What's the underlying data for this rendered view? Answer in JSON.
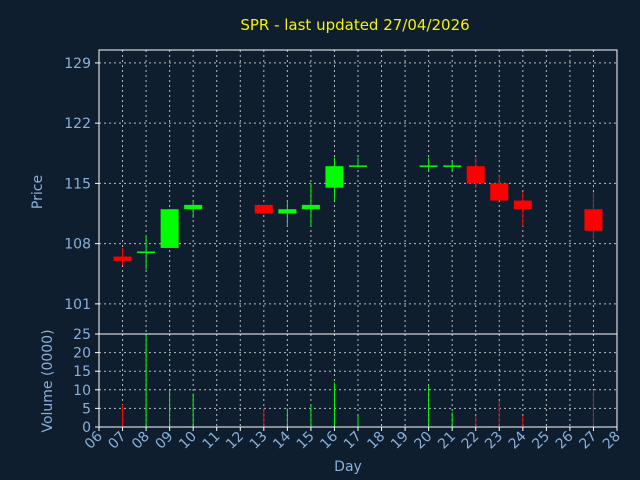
{
  "chart_data": {
    "type": "candlestick",
    "title": "SPR - last updated 27/04/2026",
    "xlabel": "Day",
    "price_panel": {
      "ylabel": "Price",
      "ylim": [
        97.5,
        130.5
      ],
      "yticks": [
        101,
        108,
        115,
        122,
        129
      ]
    },
    "volume_panel": {
      "ylabel": "Volume (0000)",
      "ylim": [
        0,
        25
      ],
      "yticks": [
        0,
        5,
        10,
        15,
        20,
        25
      ]
    },
    "x_ticks": [
      "06",
      "07",
      "08",
      "09",
      "10",
      "11",
      "12",
      "13",
      "14",
      "15",
      "16",
      "17",
      "18",
      "19",
      "20",
      "21",
      "22",
      "23",
      "24",
      "25",
      "26",
      "27",
      "28"
    ],
    "x_range": [
      6,
      28
    ],
    "candles": [
      {
        "day": 7,
        "open": 106.5,
        "high": 107.5,
        "low": 105.5,
        "close": 106.0,
        "volume": 6
      },
      {
        "day": 8,
        "open": 107.0,
        "high": 109.0,
        "low": 105.0,
        "close": 107.0,
        "volume": 25
      },
      {
        "day": 9,
        "open": 107.5,
        "high": 112.0,
        "low": 107.5,
        "close": 112.0,
        "volume": 10
      },
      {
        "day": 10,
        "open": 112.0,
        "high": 113.0,
        "low": 111.0,
        "close": 112.5,
        "volume": 9
      },
      {
        "day": 13,
        "open": 112.5,
        "high": 112.5,
        "low": 111.5,
        "close": 111.5,
        "volume": 5
      },
      {
        "day": 14,
        "open": 111.5,
        "high": 113.0,
        "low": 110.0,
        "close": 112.0,
        "volume": 5
      },
      {
        "day": 15,
        "open": 112.0,
        "high": 115.0,
        "low": 110.0,
        "close": 112.5,
        "volume": 6
      },
      {
        "day": 16,
        "open": 114.5,
        "high": 118.0,
        "low": 113.0,
        "close": 117.0,
        "volume": 12
      },
      {
        "day": 17,
        "open": 117.0,
        "high": 118.0,
        "low": 117.0,
        "close": 117.0,
        "volume": 3
      },
      {
        "day": 20,
        "open": 117.0,
        "high": 118.0,
        "low": 116.5,
        "close": 117.0,
        "volume": 11
      },
      {
        "day": 21,
        "open": 117.0,
        "high": 117.5,
        "low": 116.5,
        "close": 117.0,
        "volume": 4
      },
      {
        "day": 22,
        "open": 117.0,
        "high": 118.0,
        "low": 114.5,
        "close": 115.0,
        "volume": 3
      },
      {
        "day": 23,
        "open": 115.0,
        "high": 116.0,
        "low": 113.0,
        "close": 113.0,
        "volume": 7
      },
      {
        "day": 24,
        "open": 113.0,
        "high": 114.0,
        "low": 110.0,
        "close": 112.0,
        "volume": 3
      },
      {
        "day": 27,
        "open": 112.0,
        "high": 114.0,
        "low": 108.5,
        "close": 109.5,
        "volume": 10
      }
    ],
    "colors": {
      "background": "#0f1e2e",
      "up": "#00ff00",
      "down": "#ff0000",
      "title": "#f2f20a",
      "axis_text": "#8ab0d8",
      "frame": "#ffffff"
    },
    "grid": true
  }
}
